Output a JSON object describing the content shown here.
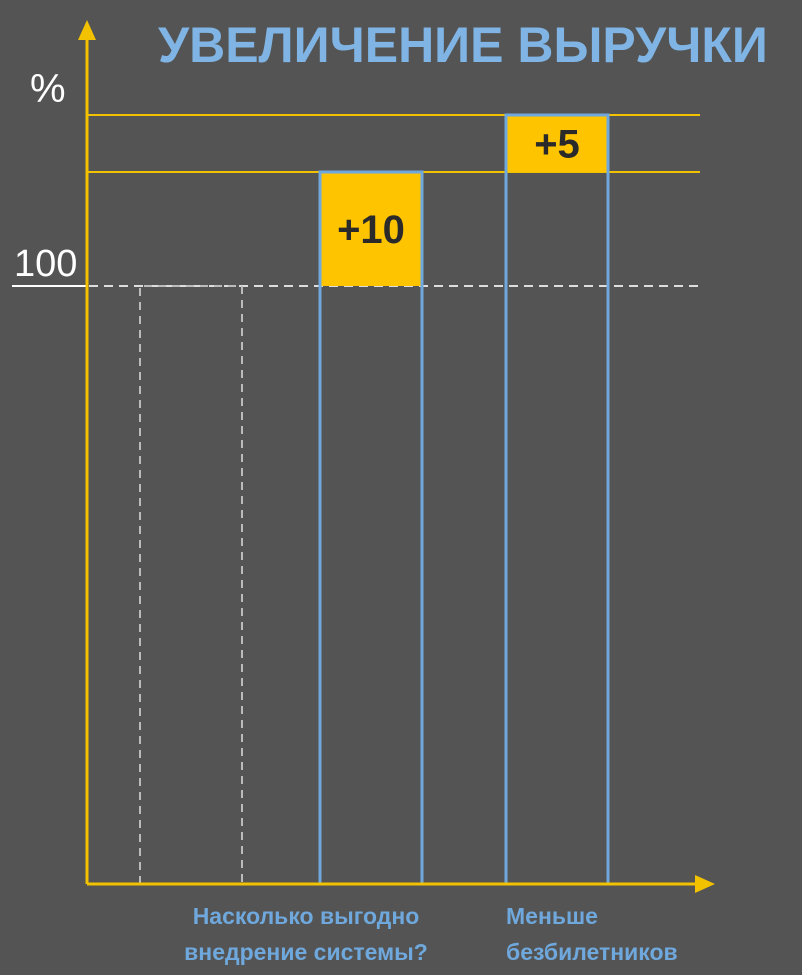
{
  "chart_data": {
    "type": "bar",
    "title": "УВЕЛИЧЕНИЕ ВЫРУЧКИ",
    "ylabel": "%",
    "baseline": 100,
    "ylim": [
      0,
      115
    ],
    "categories": [
      [
        "Насколько выгодно",
        "внедрение системы?"
      ],
      [
        "Меньше",
        "безбилетников"
      ]
    ],
    "series": [
      {
        "values": [
          10,
          5
        ],
        "labels": [
          "+10",
          "+5"
        ]
      }
    ],
    "cumulative_levels": [
      100,
      110,
      115
    ],
    "tick_labels": [
      "100"
    ],
    "colors": {
      "axis": "#f2c200",
      "increment": "#ffc400",
      "column_outline": "#6fa8dc",
      "baseline_dash": "#dddddd",
      "title": "#7fb4e4"
    }
  }
}
